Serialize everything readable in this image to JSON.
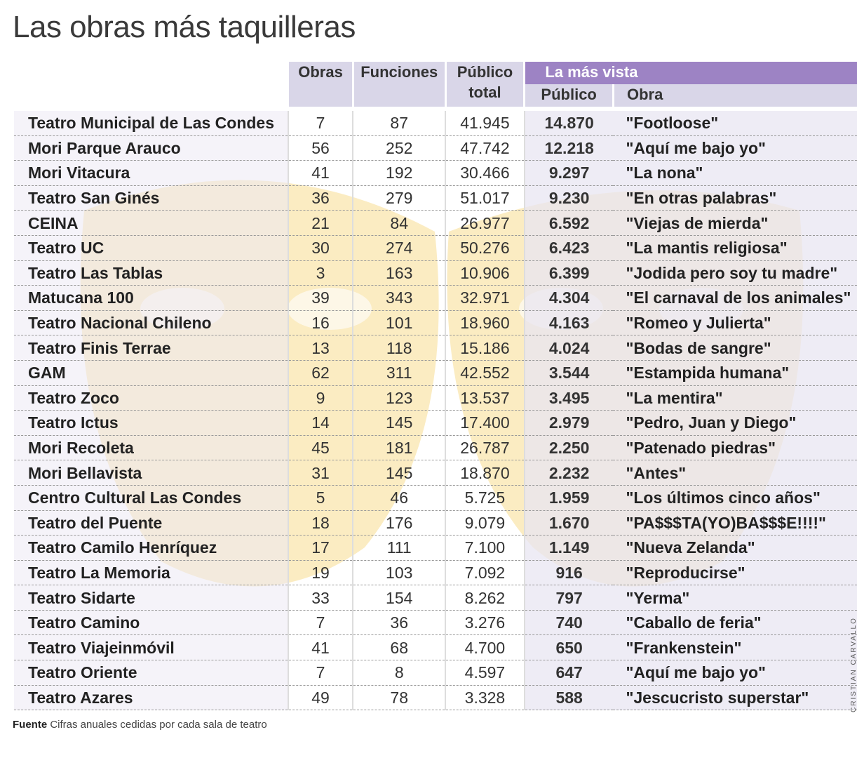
{
  "title": "Las obras más taquilleras",
  "chart_data": {
    "type": "table",
    "title": "Las obras más taquilleras",
    "group_header": "La más vista",
    "columns": [
      "",
      "Obras",
      "Funciones",
      "Público total",
      "Público",
      "Obra"
    ],
    "rows": [
      [
        "Teatro Municipal de Las Condes",
        "7",
        "87",
        "41.945",
        "14.870",
        "\"Footloose\""
      ],
      [
        "Mori Parque Arauco",
        "56",
        "252",
        "47.742",
        "12.218",
        "\"Aquí me bajo yo\""
      ],
      [
        "Mori Vitacura",
        "41",
        "192",
        "30.466",
        "9.297",
        "\"La nona\""
      ],
      [
        "Teatro San Ginés",
        "36",
        "279",
        "51.017",
        "9.230",
        "\"En otras palabras\""
      ],
      [
        "CEINA",
        "21",
        "84",
        "26.977",
        "6.592",
        "\"Viejas de mierda\""
      ],
      [
        "Teatro UC",
        "30",
        "274",
        "50.276",
        "6.423",
        "\"La mantis religiosa\""
      ],
      [
        "Teatro Las Tablas",
        "3",
        "163",
        "10.906",
        "6.399",
        "\"Jodida pero soy tu madre\""
      ],
      [
        "Matucana 100",
        "39",
        "343",
        "32.971",
        "4.304",
        "\"El carnaval de los animales\""
      ],
      [
        "Teatro Nacional Chileno",
        "16",
        "101",
        "18.960",
        "4.163",
        "\"Romeo y Julierta\""
      ],
      [
        "Teatro Finis Terrae",
        "13",
        "118",
        "15.186",
        "4.024",
        "\"Bodas de sangre\""
      ],
      [
        "GAM",
        "62",
        "311",
        "42.552",
        "3.544",
        "\"Estampida humana\""
      ],
      [
        "Teatro Zoco",
        "9",
        "123",
        "13.537",
        "3.495",
        "\"La mentira\""
      ],
      [
        "Teatro Ictus",
        "14",
        "145",
        "17.400",
        "2.979",
        "\"Pedro, Juan y Diego\""
      ],
      [
        "Mori Recoleta",
        "45",
        "181",
        "26.787",
        "2.250",
        "\"Patenado piedras\""
      ],
      [
        "Mori Bellavista",
        "31",
        "145",
        "18.870",
        "2.232",
        "\"Antes\""
      ],
      [
        "Centro Cultural Las Condes",
        "5",
        "46",
        "5.725",
        "1.959",
        "\"Los últimos cinco años\""
      ],
      [
        "Teatro del Puente",
        "18",
        "176",
        "9.079",
        "1.670",
        "\"PA$$$TA(YO)BA$$$E!!!!\""
      ],
      [
        "Teatro Camilo Henríquez",
        "17",
        "111",
        "7.100",
        "1.149",
        "\"Nueva Zelanda\""
      ],
      [
        "Teatro La Memoria",
        "19",
        "103",
        "7.092",
        "916",
        "\"Reproducirse\""
      ],
      [
        "Teatro Sidarte",
        "33",
        "154",
        "8.262",
        "797",
        "\"Yerma\""
      ],
      [
        "Teatro Camino",
        "7",
        "36",
        "3.276",
        "740",
        "\"Caballo de feria\""
      ],
      [
        "Teatro Viajeinmóvil",
        "41",
        "68",
        "4.700",
        "650",
        "\"Frankenstein\""
      ],
      [
        "Teatro Oriente",
        "7",
        "8",
        "4.597",
        "647",
        "\"Aquí me bajo yo\""
      ],
      [
        "Teatro Azares",
        "49",
        "78",
        "3.328",
        "588",
        "\"Jescucristo superstar\""
      ]
    ]
  },
  "source_label": "Fuente",
  "source_text": "Cifras anuales cedidas por cada sala de teatro",
  "credit": "CRISTIAN CARVALLO",
  "colors": {
    "header": "#d9d6e8",
    "accent": "#9d83c4",
    "watermark": "#f6d98a"
  }
}
